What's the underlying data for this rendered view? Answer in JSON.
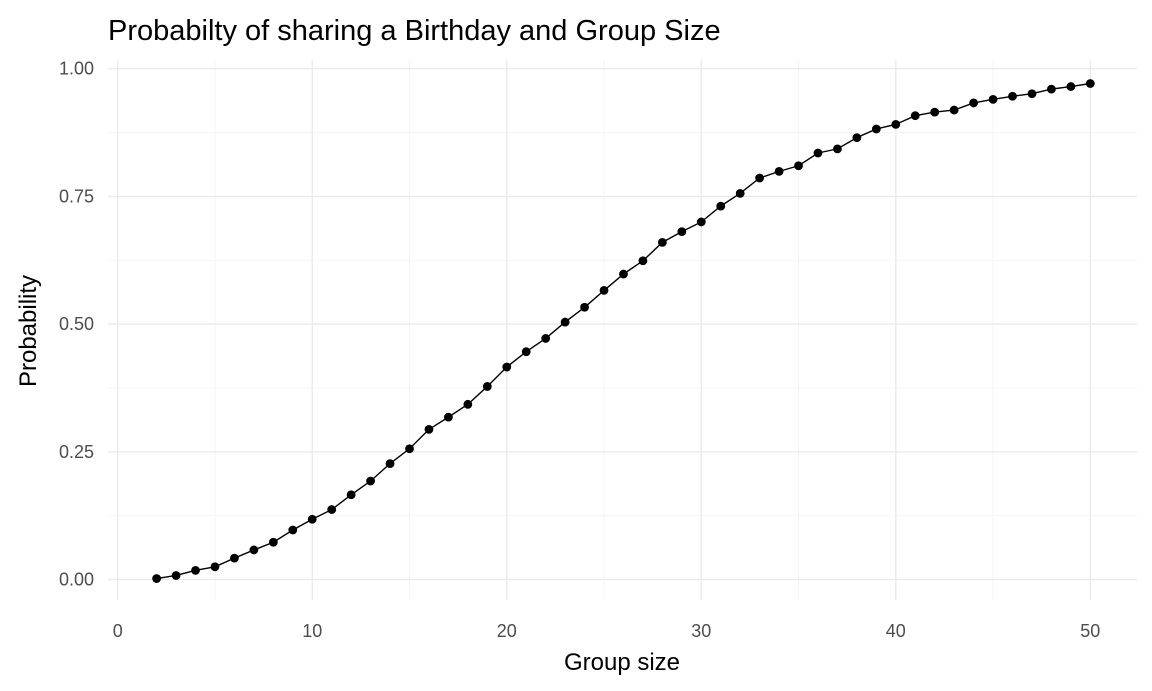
{
  "chart_data": {
    "type": "line",
    "title": "Probabilty of sharing a Birthday and Group Size",
    "xlabel": "Group size",
    "ylabel": "Probability",
    "xlim": [
      -0.5,
      52.4
    ],
    "ylim": [
      -0.04,
      1.017
    ],
    "x_ticks": [
      0,
      10,
      20,
      30,
      40,
      50
    ],
    "x_tick_labels": [
      "0",
      "10",
      "20",
      "30",
      "40",
      "50"
    ],
    "y_ticks": [
      0,
      0.25,
      0.5,
      0.75,
      1.0
    ],
    "y_tick_labels": [
      "0.00",
      "0.25",
      "0.50",
      "0.75",
      "1.00"
    ],
    "grid": true,
    "legend": "none",
    "line_color": "#000000",
    "series": [
      {
        "x": [
          2,
          3,
          4,
          5,
          6,
          7,
          8,
          9,
          10,
          11,
          12,
          13,
          14,
          15,
          16,
          17,
          18,
          19,
          20,
          21,
          22,
          23,
          24,
          25,
          26,
          27,
          28,
          29,
          30,
          31,
          32,
          33,
          34,
          35,
          36,
          37,
          38,
          39,
          40,
          41,
          42,
          43,
          44,
          45,
          46,
          47,
          48,
          49,
          50
        ],
        "values": [
          0.002,
          0.008,
          0.018,
          0.025,
          0.042,
          0.058,
          0.073,
          0.097,
          0.118,
          0.137,
          0.166,
          0.193,
          0.227,
          0.256,
          0.294,
          0.318,
          0.343,
          0.378,
          0.416,
          0.446,
          0.472,
          0.504,
          0.533,
          0.566,
          0.598,
          0.624,
          0.66,
          0.681,
          0.7,
          0.731,
          0.756,
          0.786,
          0.799,
          0.81,
          0.835,
          0.843,
          0.865,
          0.882,
          0.891,
          0.908,
          0.915,
          0.919,
          0.933,
          0.94,
          0.946,
          0.951,
          0.96,
          0.965,
          0.971
        ]
      }
    ]
  }
}
